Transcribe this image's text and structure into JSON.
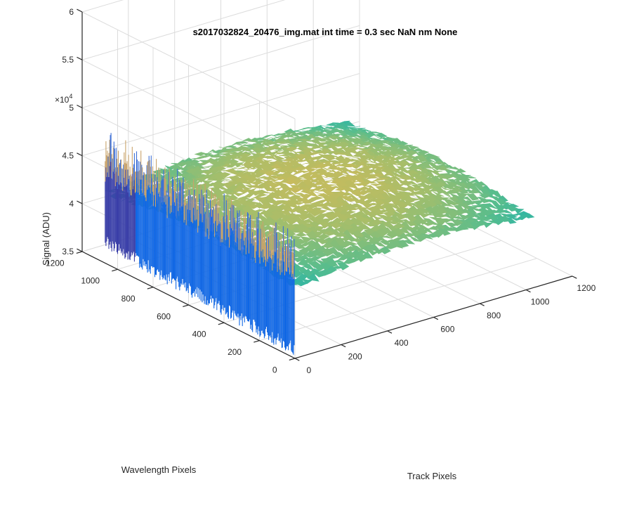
{
  "chart_data": {
    "type": "surface",
    "title": "s2017032824_20476_img.mat int time = 0.3 sec  NaN nm None",
    "xlabel": "Track Pixels",
    "ylabel": "Wavelength Pixels",
    "zlabel": "Signal (ADU)",
    "x_ticks": [
      "0",
      "200",
      "400",
      "600",
      "800",
      "1000",
      "1200"
    ],
    "y_ticks": [
      "0",
      "200",
      "400",
      "600",
      "800",
      "1000",
      "1200"
    ],
    "z_ticks": [
      "3.5",
      "4",
      "4.5",
      "5",
      "5.5",
      "6"
    ],
    "z_exponent": "×10",
    "z_exponent_power": "4",
    "xlim": [
      0,
      1200
    ],
    "ylim": [
      0,
      1200
    ],
    "zlim": [
      35000,
      60000
    ],
    "grid": true,
    "colormap": "parula",
    "surface_description_values": {
      "plateau_center": 44800,
      "plateau_edge": 42500,
      "front_edge_column_y_range": [
        0,
        1070
      ],
      "front_edge_top_mean": 46500,
      "front_edge_bottom_mean": 38000
    }
  }
}
